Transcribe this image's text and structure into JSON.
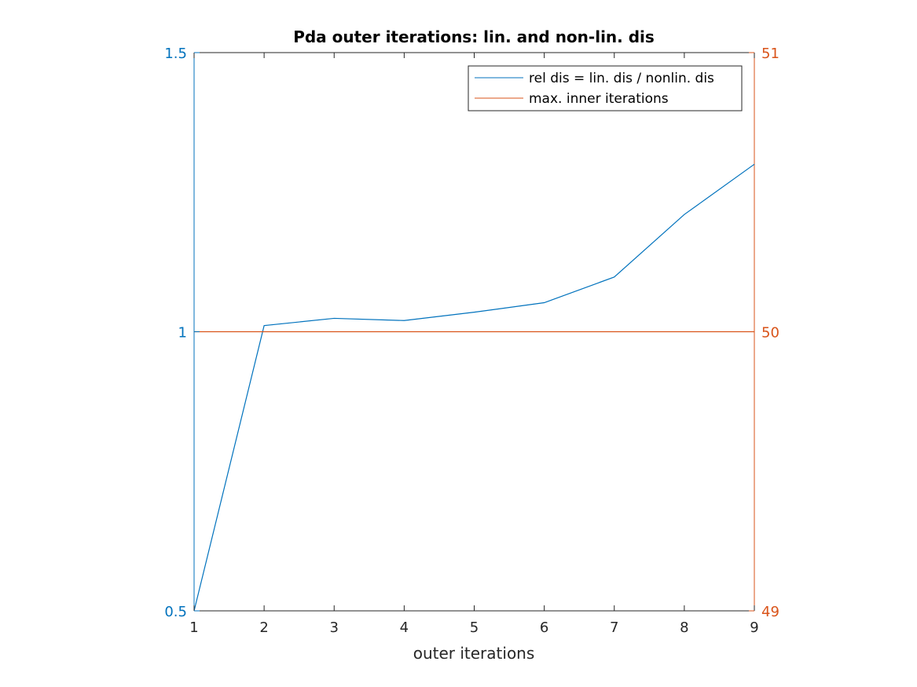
{
  "chart_data": {
    "type": "line",
    "title": "Pda outer iterations: lin. and non-lin. dis",
    "xlabel": "outer iterations",
    "ylabel_left": "",
    "ylabel_right": "",
    "xlim": [
      1,
      9
    ],
    "ylim_left": [
      0.5,
      1.5
    ],
    "ylim_right": [
      49,
      51
    ],
    "x_ticks": [
      1,
      2,
      3,
      4,
      5,
      6,
      7,
      8,
      9
    ],
    "y_ticks_left": [
      {
        "value": 0.5,
        "label": "0.5"
      },
      {
        "value": 1,
        "label": "1"
      },
      {
        "value": 1.5,
        "label": "1.5"
      }
    ],
    "y_ticks_right": [
      {
        "value": 49,
        "label": "49"
      },
      {
        "value": 50,
        "label": "50"
      },
      {
        "value": 51,
        "label": "51"
      }
    ],
    "grid": false,
    "legend_position": "top-right",
    "series": [
      {
        "name": "rel dis = lin. dis / nonlin. dis",
        "axis": "left",
        "color": "#0072BD",
        "x": [
          1,
          2,
          3,
          4,
          5,
          6,
          7,
          8,
          9
        ],
        "y": [
          0.5,
          1.011,
          1.024,
          1.02,
          1.035,
          1.052,
          1.098,
          1.21,
          1.3
        ]
      },
      {
        "name": "max. inner iterations",
        "axis": "right",
        "color": "#D95319",
        "x": [
          1,
          2,
          3,
          4,
          5,
          6,
          7,
          8,
          9
        ],
        "y": [
          50,
          50,
          50,
          50,
          50,
          50,
          50,
          50,
          50
        ]
      }
    ],
    "colors": {
      "left_axis": "#0072BD",
      "right_axis": "#D95319",
      "x_axis": "#262626"
    }
  }
}
